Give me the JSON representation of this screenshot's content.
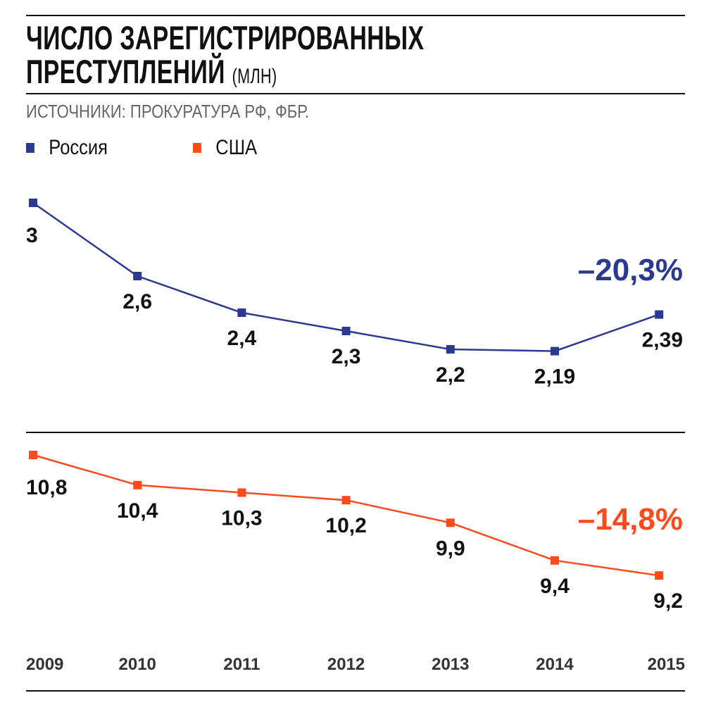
{
  "header": {
    "title_line1": "ЧИСЛО ЗАРЕГИСТРИРОВАННЫХ",
    "title_line2": "ПРЕСТУПЛЕНИЙ",
    "unit": "(МЛН)",
    "source": "ИСТОЧНИКИ: ПРОКУРАТУРА РФ, ФБР."
  },
  "chart_data": {
    "type": "line",
    "title": "ЧИСЛО ЗАРЕГИСТРИРОВАННЫХ ПРЕСТУПЛЕНИЙ (МЛН)",
    "x": [
      "2009",
      "2010",
      "2011",
      "2012",
      "2013",
      "2014",
      "2015"
    ],
    "series": [
      {
        "name": "Россия",
        "color": "#2B3990",
        "values": [
          3,
          2.6,
          2.4,
          2.3,
          2.2,
          2.19,
          2.39
        ],
        "labels": [
          "3",
          "2,6",
          "2,4",
          "2,3",
          "2,2",
          "2,19",
          "2,39"
        ],
        "change": "–20,3%"
      },
      {
        "name": "США",
        "color": "#FF4A1C",
        "values": [
          10.8,
          10.4,
          10.3,
          10.2,
          9.9,
          9.4,
          9.2
        ],
        "labels": [
          "10,8",
          "10,4",
          "10,3",
          "10,2",
          "9,9",
          "9,4",
          "9,2"
        ],
        "change": "–14,8%"
      }
    ],
    "legend": "top-left",
    "grid": false
  }
}
